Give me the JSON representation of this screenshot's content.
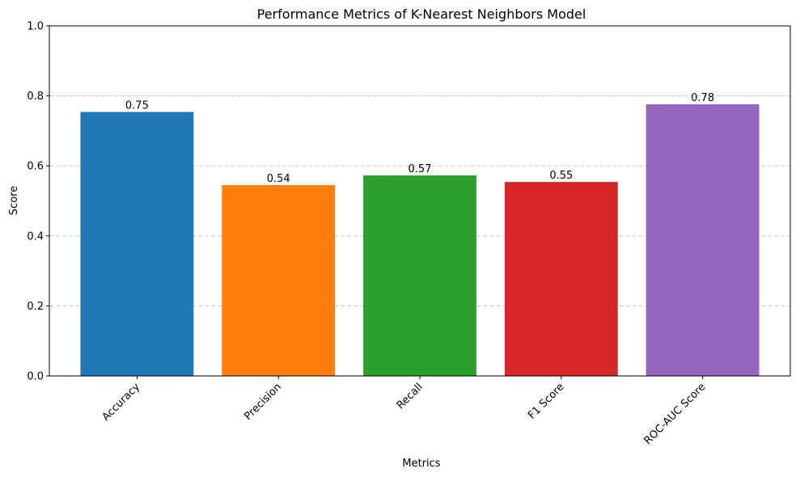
{
  "chart_data": {
    "type": "bar",
    "title": "Performance Metrics of K-Nearest Neighbors Model",
    "xlabel": "Metrics",
    "ylabel": "Score",
    "categories": [
      "Accuracy",
      "Precision",
      "Recall",
      "F1 Score",
      "ROC-AUC Score"
    ],
    "values": [
      0.754,
      0.545,
      0.573,
      0.554,
      0.776
    ],
    "value_labels": [
      "0.75",
      "0.54",
      "0.57",
      "0.55",
      "0.78"
    ],
    "colors": [
      "#1f77b4",
      "#ff7f0e",
      "#2ca02c",
      "#d62728",
      "#9467bd"
    ],
    "ylim": [
      0,
      1.0
    ],
    "yticks": [
      0.0,
      0.2,
      0.4,
      0.6,
      0.8,
      1.0
    ],
    "ytick_labels": [
      "0.0",
      "0.2",
      "0.4",
      "0.6",
      "0.8",
      "1.0"
    ],
    "grid": "y-dashed",
    "xtick_rotation": "45"
  }
}
